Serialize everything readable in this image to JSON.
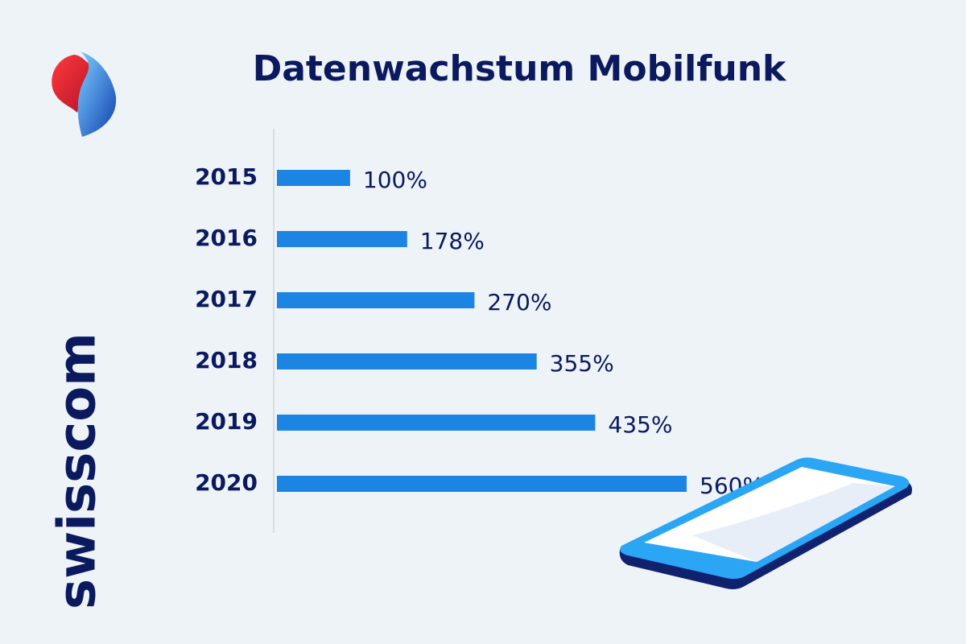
{
  "brand": "swisscom",
  "chart_data": {
    "type": "hbar",
    "title": "Datenwachstum Mobilfunk",
    "categories": [
      "2015",
      "2016",
      "2017",
      "2018",
      "2019",
      "2020"
    ],
    "values": [
      100,
      178,
      270,
      355,
      435,
      560
    ],
    "value_labels": [
      "100%",
      "178%",
      "270%",
      "355%",
      "435%",
      "560%"
    ],
    "color": "#1c84e3"
  }
}
